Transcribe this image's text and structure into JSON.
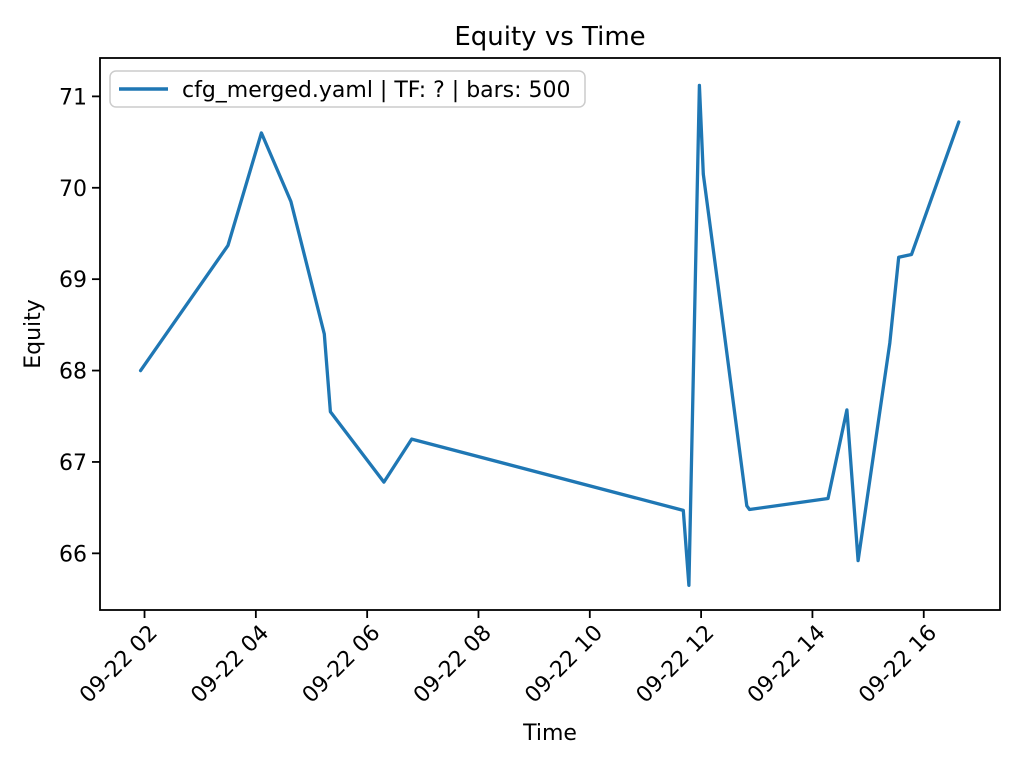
{
  "chart_data": {
    "type": "line",
    "title": "Equity vs Time",
    "xlabel": "Time",
    "ylabel": "Equity",
    "legend": [
      "cfg_merged.yaml | TF: ? | bars: 500"
    ],
    "legend_position": "upper left",
    "grid": false,
    "line_color": "#1f77b4",
    "axis_color": "#000000",
    "legend_border_color": "#cccccc",
    "series": [
      {
        "name": "cfg_merged.yaml | TF: ? | bars: 500",
        "x_hours": [
          1.93,
          3.5,
          4.1,
          4.63,
          5.23,
          5.34,
          6.3,
          6.8,
          11.68,
          11.78,
          11.97,
          12.04,
          12.31,
          12.82,
          12.87,
          14.28,
          14.62,
          14.82,
          15.39,
          15.55,
          15.78,
          16.63
        ],
        "times": [
          "09-22 01:56",
          "09-22 03:30",
          "09-22 04:06",
          "09-22 04:38",
          "09-22 05:14",
          "09-22 05:20",
          "09-22 06:18",
          "09-22 06:48",
          "09-22 11:41",
          "09-22 11:47",
          "09-22 11:58",
          "09-22 12:02",
          "09-22 12:19",
          "09-22 12:49",
          "09-22 12:52",
          "09-22 14:17",
          "09-22 14:37",
          "09-22 14:49",
          "09-22 15:23",
          "09-22 15:33",
          "09-22 15:47",
          "09-22 16:38"
        ],
        "values": [
          68.0,
          69.37,
          70.6,
          69.85,
          68.4,
          67.55,
          66.78,
          67.25,
          66.47,
          65.65,
          71.12,
          70.15,
          68.9,
          66.52,
          66.48,
          66.6,
          67.57,
          65.92,
          68.3,
          69.24,
          69.27,
          70.72
        ]
      }
    ],
    "x_ticks": [
      {
        "hour": 2,
        "label": "09-22 02"
      },
      {
        "hour": 4,
        "label": "09-22 04"
      },
      {
        "hour": 6,
        "label": "09-22 06"
      },
      {
        "hour": 8,
        "label": "09-22 08"
      },
      {
        "hour": 10,
        "label": "09-22 10"
      },
      {
        "hour": 12,
        "label": "09-22 12"
      },
      {
        "hour": 14,
        "label": "09-22 14"
      },
      {
        "hour": 16,
        "label": "09-22 16"
      }
    ],
    "y_ticks": [
      66,
      67,
      68,
      69,
      70,
      71
    ],
    "xlim_hours": [
      1.2,
      17.37
    ],
    "ylim": [
      65.38,
      71.42
    ]
  }
}
